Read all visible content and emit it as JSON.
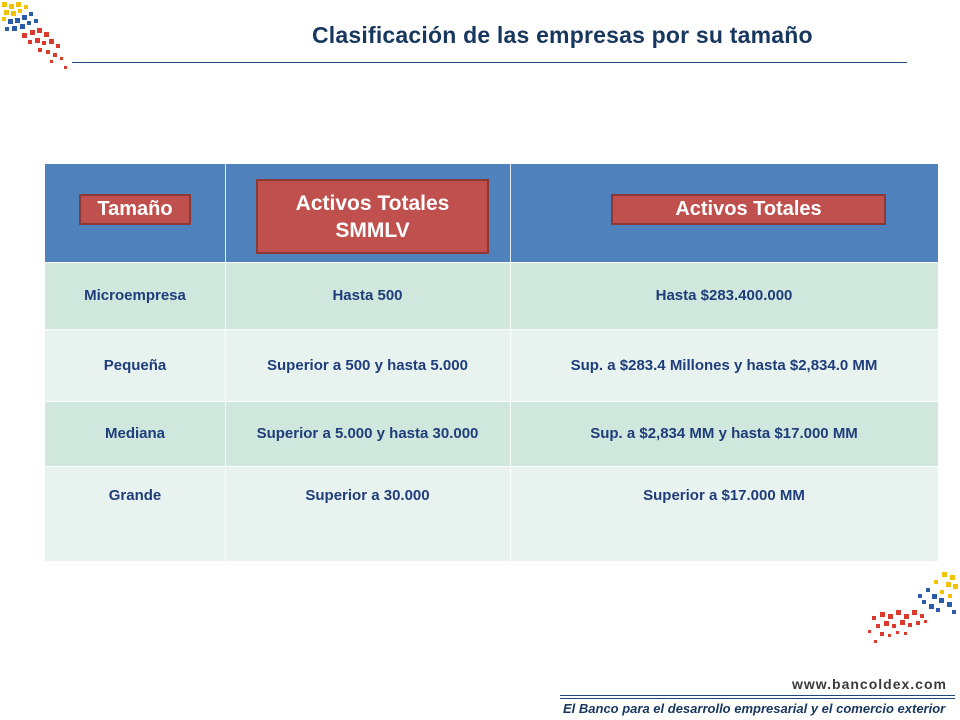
{
  "slide": {
    "title": "Clasificación de las empresas por su tamaño"
  },
  "table": {
    "headers": {
      "size": "Tamaño",
      "assets_smmlv_line1": "Activos Totales",
      "assets_smmlv_line2": "SMMLV",
      "assets": "Activos Totales"
    },
    "rows": [
      {
        "size": "Microempresa",
        "smmlv": "Hasta 500",
        "assets": "Hasta $283.400.000"
      },
      {
        "size": "Pequeña",
        "smmlv": "Superior a 500 y hasta 5.000",
        "assets": "Sup. a $283.4 Millones y hasta $2,834.0 MM"
      },
      {
        "size": "Mediana",
        "smmlv": "Superior a 5.000 y hasta 30.000",
        "assets": "Sup. a $2,834 MM y hasta $17.000 MM"
      },
      {
        "size": "Grande",
        "smmlv": "Superior a 30.000",
        "assets": "Superior a $17.000 MM"
      }
    ]
  },
  "footer": {
    "url": "www.bancoldex.com",
    "slogan": "El Banco para el desarrollo empresarial y el comercio exterior"
  },
  "colors": {
    "header_bg": "#4f81bd",
    "header_box": "#c0504d",
    "row_dark": "#cfe7dd",
    "row_light": "#e8f3ef",
    "text": "#1f3d7a"
  }
}
